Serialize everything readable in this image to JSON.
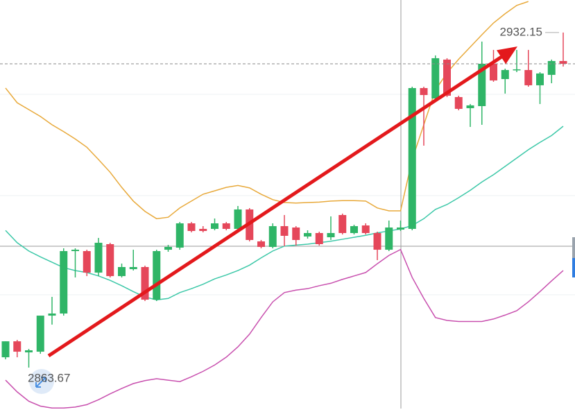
{
  "chart_data": {
    "type": "candlestick",
    "up_color": "#2fb567",
    "down_color": "#e5475a",
    "ylim": [
      2855.3,
      2938.8
    ],
    "open": [
      2865.78,
      2869.04,
      2866.78,
      2866.92,
      2874.29,
      2874.72,
      2887.48,
      2887.48,
      2883.08,
      2888.9,
      2882.37,
      2883.79,
      2884.22,
      2877.55,
      2887.76,
      2888.19,
      2893.15,
      2892.02,
      2892.02,
      2893.15,
      2892.02,
      2895.99,
      2889.46,
      2888.33,
      2892.58,
      2892.3,
      2890.46,
      2891.17,
      2890.31,
      2894.85,
      2891.17,
      2892.72,
      2891.17,
      2887.76,
      2891.87,
      2892.02,
      2920.8,
      2918.67,
      2926.62,
      2918.96,
      2916.69,
      2917.11,
      2925.76,
      2922.64,
      2924.49,
      2924.49,
      2921.37,
      2923.5,
      2926.33
    ],
    "high": [
      2869.04,
      2869.33,
      2867.48,
      2874.29,
      2878.12,
      2888.05,
      2888.05,
      2887.76,
      2890.17,
      2889.18,
      2884.93,
      2887.76,
      2884.5,
      2887.76,
      2888.75,
      2893.43,
      2893.43,
      2892.58,
      2894.14,
      2893.43,
      2896.7,
      2896.27,
      2889.75,
      2893.15,
      2894.85,
      2892.58,
      2891.73,
      2891.45,
      2894.57,
      2895.14,
      2892.87,
      2893.15,
      2891.45,
      2893.72,
      2893.72,
      2921.08,
      2921.08,
      2927.47,
      2926.9,
      2919.24,
      2917.54,
      2930.3,
      2928.6,
      2924.77,
      2928.6,
      2928.6,
      2924.06,
      2926.62,
      2932.15
    ],
    "low": [
      2865.36,
      2865.78,
      2863.67,
      2866.49,
      2872.45,
      2874.29,
      2882.09,
      2882.37,
      2882.37,
      2882.09,
      2882.09,
      2883.51,
      2877.27,
      2877.27,
      2887.34,
      2887.76,
      2891.31,
      2891.31,
      2891.73,
      2891.73,
      2891.59,
      2889.46,
      2888.05,
      2888.05,
      2888.47,
      2888.61,
      2890.03,
      2888.61,
      2889.75,
      2890.88,
      2890.88,
      2890.88,
      2885.63,
      2887.48,
      2891.59,
      2891.73,
      2909.03,
      2918.25,
      2918.96,
      2916.26,
      2912.86,
      2913.29,
      2922.08,
      2919.67,
      2924.06,
      2921.08,
      2917.54,
      2921.79,
      2925.2
    ],
    "close": [
      2869.04,
      2866.92,
      2867.2,
      2874.29,
      2874.72,
      2887.48,
      2887.76,
      2883.08,
      2889.18,
      2882.37,
      2884.22,
      2884.22,
      2877.55,
      2887.48,
      2888.33,
      2893.15,
      2891.59,
      2891.59,
      2893.15,
      2892.02,
      2895.99,
      2889.75,
      2888.33,
      2892.58,
      2890.6,
      2889.75,
      2891.17,
      2888.9,
      2891.17,
      2891.17,
      2892.58,
      2891.17,
      2887.76,
      2892.3,
      2892.3,
      2920.8,
      2919.38,
      2926.9,
      2919.24,
      2916.55,
      2917.26,
      2925.76,
      2922.36,
      2924.49,
      2924.63,
      2921.37,
      2923.78,
      2926.33,
      2925.76
    ],
    "bands": [
      {
        "color": "#e8a93a",
        "values": [
          2920.8,
          2917.8,
          2916.4,
          2915.0,
          2913.3,
          2911.9,
          2910.4,
          2908.7,
          2906.2,
          2903.6,
          2900.5,
          2897.7,
          2895.6,
          2894.1,
          2894.4,
          2896.3,
          2897.7,
          2899.1,
          2899.8,
          2900.5,
          2900.9,
          2900.4,
          2899.1,
          2898.0,
          2897.4,
          2897.3,
          2897.4,
          2897.5,
          2897.7,
          2897.8,
          2897.8,
          2897.7,
          2896.3,
          2895.7,
          2895.7,
          2906.2,
          2913.3,
          2920.4,
          2923.9,
          2926.7,
          2929.2,
          2931.7,
          2934.1,
          2936.0,
          2937.7,
          2938.5,
          null,
          null,
          null
        ]
      },
      {
        "color": "#3cc8a8",
        "values": [
          2891.7,
          2889.2,
          2887.5,
          2886.3,
          2885.2,
          2884.1,
          2883.5,
          2883.1,
          2882.4,
          2881.5,
          2880.4,
          2879.2,
          2878.1,
          2877.5,
          2877.8,
          2879.0,
          2879.8,
          2880.7,
          2881.8,
          2882.6,
          2883.5,
          2884.6,
          2886.1,
          2887.5,
          2888.5,
          2888.7,
          2888.9,
          2889.2,
          2889.5,
          2889.9,
          2890.3,
          2890.7,
          2891.2,
          2891.6,
          2892.0,
          2892.7,
          2894.1,
          2896.0,
          2897.0,
          2898.4,
          2899.9,
          2901.6,
          2903.1,
          2904.8,
          2906.5,
          2908.2,
          2909.7,
          2911.1,
          2913.0
        ]
      },
      {
        "color": "#c84fae",
        "values": [
          2861.1,
          2858.7,
          2856.8,
          2855.8,
          2855.4,
          2855.4,
          2855.6,
          2856.1,
          2857.1,
          2858.3,
          2859.4,
          2860.4,
          2861.0,
          2861.4,
          2861.1,
          2860.8,
          2861.8,
          2862.9,
          2864.2,
          2865.8,
          2867.9,
          2870.5,
          2873.9,
          2877.1,
          2879.0,
          2879.5,
          2879.8,
          2880.4,
          2880.9,
          2881.7,
          2882.4,
          2883.1,
          2884.9,
          2886.6,
          2887.8,
          2882.1,
          2877.8,
          2873.9,
          2873.3,
          2873.1,
          2873.1,
          2873.1,
          2873.6,
          2874.4,
          2875.3,
          2877.1,
          2879.2,
          2881.4,
          2883.5
        ]
      }
    ],
    "max_label": 2932.15,
    "min_label": 2863.67
  }
}
